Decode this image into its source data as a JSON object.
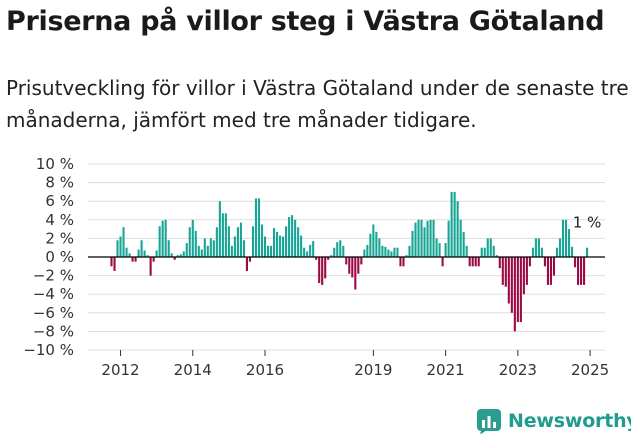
{
  "header": {
    "title": "Priserna på villor steg i Västra Götaland",
    "subtitle": "Prisutveckling för villor i Västra Götaland under de senaste tre månaderna, jämfört med tre månader tidigare."
  },
  "brand": {
    "name": "Newsworthy",
    "icon": "newsworthy-chart-icon",
    "color": "#2a9d8f"
  },
  "colors": {
    "positive": "#17a596",
    "negative": "#9c0a45",
    "zero_line": "#000000"
  },
  "chart_data": {
    "type": "bar",
    "title": "",
    "xlabel": "",
    "ylabel": "",
    "ylim": [
      -10,
      10
    ],
    "y_ticks": [
      "10 %",
      "8 %",
      "6 %",
      "4 %",
      "2 %",
      "0 %",
      "−2 %",
      "−4 %",
      "−6 %",
      "−8 %",
      "−10 %"
    ],
    "y_tick_values": [
      10,
      8,
      6,
      4,
      2,
      0,
      -2,
      -4,
      -6,
      -8,
      -10
    ],
    "x_ticks": [
      {
        "label": "2012",
        "year": 2012
      },
      {
        "label": "2014",
        "year": 2014
      },
      {
        "label": "2016",
        "year": 2016
      },
      {
        "label": "2019",
        "year": 2019
      },
      {
        "label": "2021",
        "year": 2021
      },
      {
        "label": "2023",
        "year": 2023
      },
      {
        "label": "2025",
        "year": 2025
      }
    ],
    "grid": "horizontal",
    "start": "2011-10",
    "frequency": "monthly",
    "values": [
      -1,
      -1.5,
      1.8,
      2.2,
      3.2,
      1,
      0.4,
      -0.5,
      -0.5,
      0.8,
      1.8,
      0.7,
      0.2,
      -2,
      -0.5,
      0.7,
      3.3,
      3.9,
      4,
      1.8,
      0.4,
      -0.3,
      0.2,
      0.3,
      0.6,
      1.5,
      3.2,
      4,
      2.8,
      1.2,
      0.8,
      2,
      1.2,
      2,
      1.8,
      3.2,
      6,
      4.7,
      4.7,
      3.3,
      1.2,
      2.2,
      3.2,
      3.7,
      1.8,
      -1.5,
      -0.5,
      3.3,
      6.3,
      6.3,
      3.5,
      2.2,
      1.2,
      1.2,
      3.1,
      2.7,
      2.3,
      2.2,
      3.3,
      4.3,
      4.5,
      4,
      3.2,
      2.3,
      1,
      0.6,
      1.3,
      1.7,
      -0.3,
      -2.8,
      -3,
      -2.3,
      -0.3,
      0.2,
      1,
      1.6,
      1.8,
      1.2,
      -0.8,
      -1.8,
      -2.2,
      -3.5,
      -1.8,
      -0.8,
      0.8,
      1.3,
      2.5,
      3.5,
      2.7,
      2,
      1.2,
      1.1,
      0.8,
      0.6,
      1,
      1,
      -1,
      -1,
      0.2,
      1.2,
      2.8,
      3.7,
      4,
      4,
      3.2,
      3.9,
      4,
      4,
      2,
      1.5,
      -1,
      1.5,
      3.9,
      7,
      7,
      6,
      4,
      2.7,
      1.2,
      -1,
      -1,
      -1,
      -1,
      1,
      1,
      2,
      2,
      1.2,
      0.2,
      -1.2,
      -3,
      -3.2,
      -5,
      -6,
      -8,
      -7,
      -7,
      -4,
      -3,
      -1,
      1,
      2,
      2,
      1,
      -1,
      -3,
      -3,
      -2,
      1,
      2,
      4,
      4,
      3,
      1.1,
      -1.1,
      -3,
      -3,
      -3,
      1
    ],
    "annotation": {
      "label": "1 %",
      "value": 1
    }
  }
}
